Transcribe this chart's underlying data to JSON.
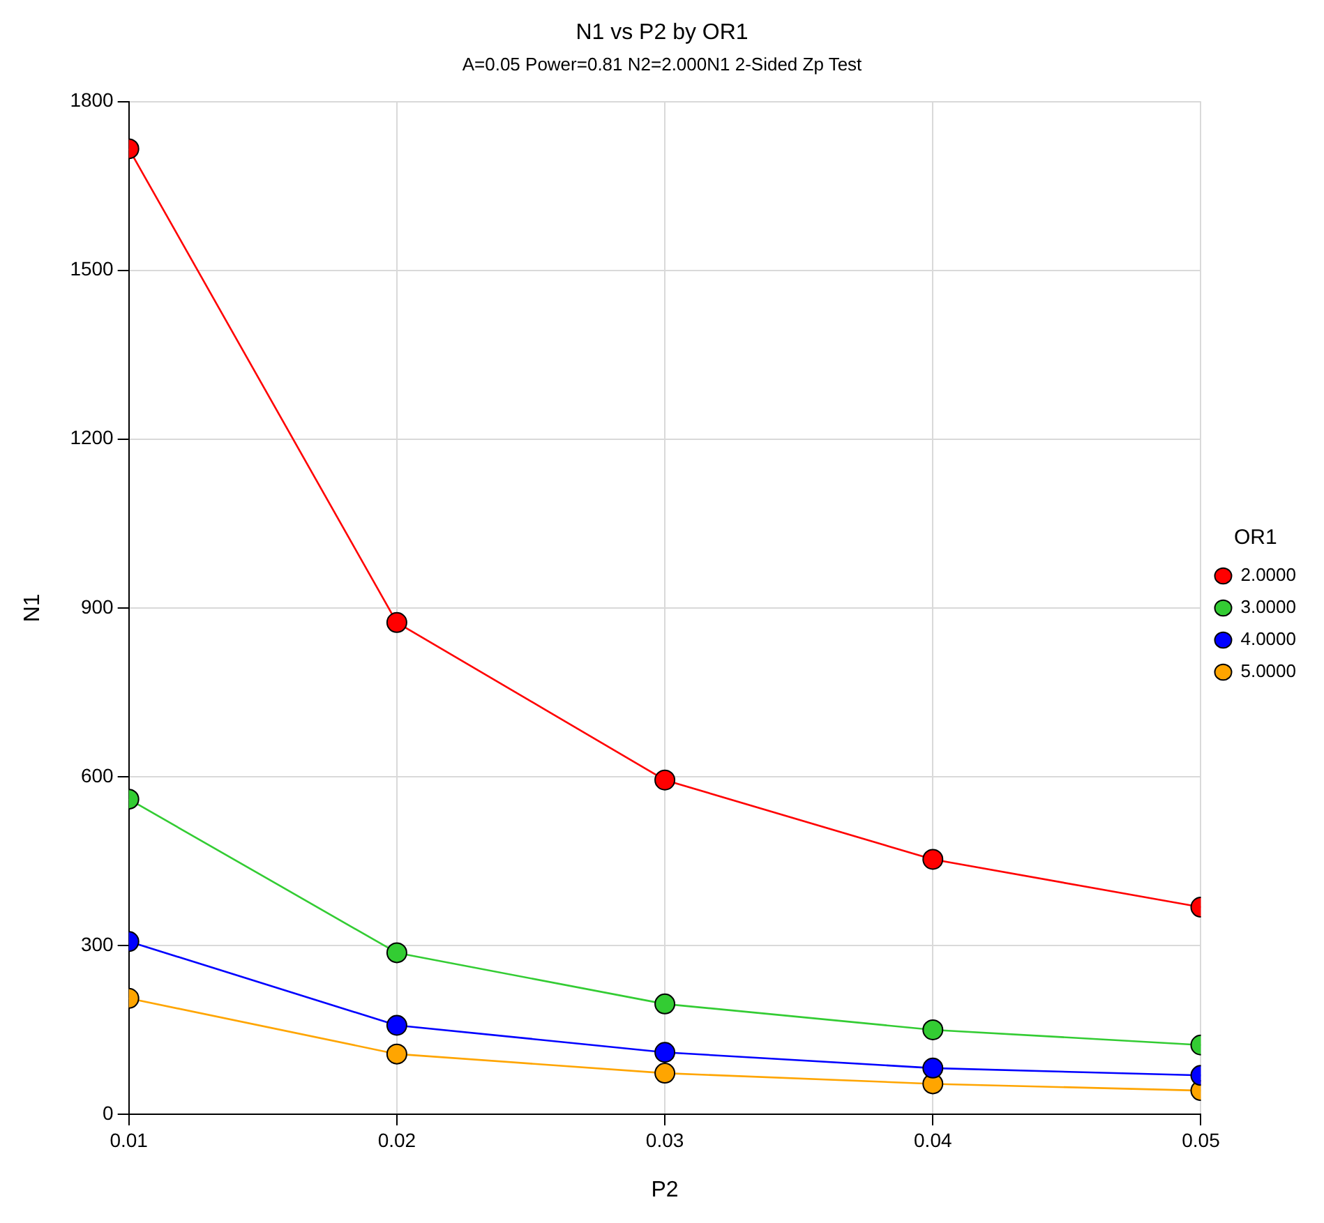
{
  "chart_data": {
    "type": "line",
    "title": "N1 vs P2 by OR1",
    "subtitle": "A=0.05 Power=0.81 N2=2.000N1 2-Sided Zp Test",
    "xlabel": "P2",
    "ylabel": "N1",
    "legend_title": "OR1",
    "x": [
      0.01,
      0.02,
      0.03,
      0.04,
      0.05
    ],
    "series": [
      {
        "name": "2.0000",
        "color": "#ff0000",
        "values": [
          1716,
          874,
          594,
          453,
          368
        ]
      },
      {
        "name": "3.0000",
        "color": "#33cc33",
        "values": [
          560,
          287,
          196,
          150,
          123
        ]
      },
      {
        "name": "4.0000",
        "color": "#0000ff",
        "values": [
          307,
          158,
          110,
          82,
          69
        ]
      },
      {
        "name": "5.0000",
        "color": "#ffa500",
        "values": [
          206,
          107,
          73,
          54,
          42
        ]
      }
    ],
    "xlim": [
      0.01,
      0.05
    ],
    "xticks": [
      0.01,
      0.02,
      0.03,
      0.04,
      0.05
    ],
    "ylim": [
      0,
      1800
    ],
    "yticks": [
      0,
      300,
      600,
      900,
      1200,
      1500,
      1800
    ],
    "grid": true,
    "legend": "right",
    "marker": "circle",
    "line_style": "solid"
  }
}
